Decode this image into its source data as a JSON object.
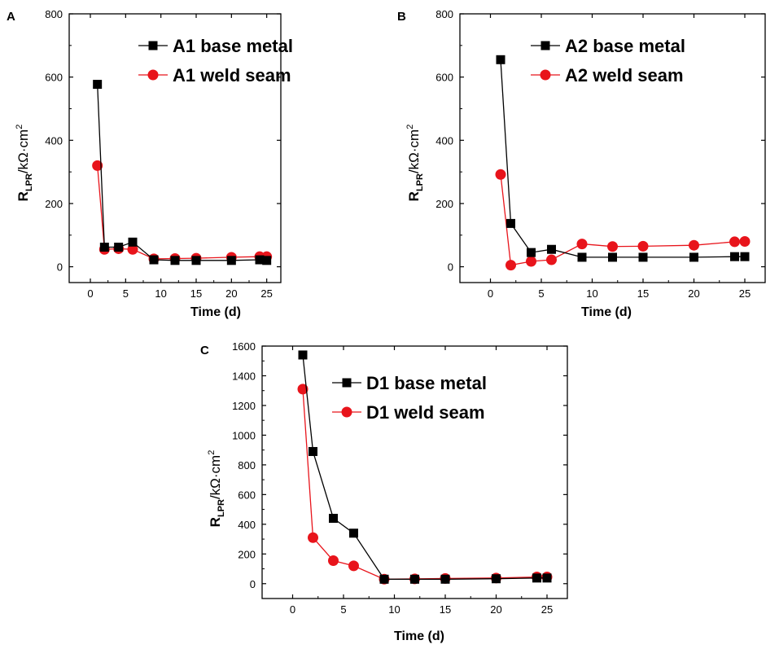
{
  "figure": {
    "xlabel": "Time (d)",
    "ylabel_main": "R",
    "ylabel_sub": "LPR",
    "ylabel_unit": "/kΩ·cm",
    "ylabel_sup": "2"
  },
  "colors": {
    "base": "#000000",
    "weld": "#e8141b"
  },
  "chart_data": [
    {
      "panel": "A",
      "type": "line",
      "x": [
        1,
        2,
        4,
        6,
        9,
        12,
        15,
        20,
        24,
        25
      ],
      "series": [
        {
          "name": "A1 base metal",
          "marker": "square",
          "values": [
            577,
            62,
            62,
            78,
            22,
            20,
            20,
            20,
            22,
            20
          ]
        },
        {
          "name": "A1 weld seam",
          "marker": "circle",
          "values": [
            320,
            55,
            57,
            55,
            25,
            26,
            27,
            30,
            32,
            32
          ]
        }
      ],
      "xlim": [
        -3,
        27
      ],
      "ylim": [
        -50,
        800
      ],
      "xticks": [
        0,
        5,
        10,
        15,
        20,
        25
      ],
      "yticks": [
        0,
        200,
        400,
        600,
        800
      ],
      "xlabel": "Time (d)",
      "ylabel": "RLPR/kΩ·cm2"
    },
    {
      "panel": "B",
      "type": "line",
      "x": [
        1,
        2,
        4,
        6,
        9,
        12,
        15,
        20,
        24,
        25
      ],
      "series": [
        {
          "name": "A2 base metal",
          "marker": "square",
          "values": [
            655,
            137,
            45,
            55,
            30,
            30,
            30,
            30,
            32,
            32
          ]
        },
        {
          "name": "A2 weld seam",
          "marker": "circle",
          "values": [
            292,
            5,
            17,
            22,
            72,
            64,
            65,
            68,
            79,
            80
          ]
        }
      ],
      "xlim": [
        -3,
        27
      ],
      "ylim": [
        -50,
        800
      ],
      "xticks": [
        0,
        5,
        10,
        15,
        20,
        25
      ],
      "yticks": [
        0,
        200,
        400,
        600,
        800
      ],
      "xlabel": "Time (d)",
      "ylabel": "RLPR/kΩ·cm2"
    },
    {
      "panel": "C",
      "type": "line",
      "x": [
        1,
        2,
        4,
        6,
        9,
        12,
        15,
        20,
        24,
        25
      ],
      "series": [
        {
          "name": "D1 base metal",
          "marker": "square",
          "values": [
            1540,
            890,
            440,
            340,
            30,
            30,
            30,
            33,
            38,
            38
          ]
        },
        {
          "name": "D1 weld seam",
          "marker": "circle",
          "values": [
            1310,
            310,
            155,
            120,
            30,
            32,
            35,
            38,
            45,
            45
          ]
        }
      ],
      "xlim": [
        -3,
        27
      ],
      "ylim": [
        -100,
        1600
      ],
      "xticks": [
        0,
        5,
        10,
        15,
        20,
        25
      ],
      "yticks": [
        0,
        200,
        400,
        600,
        800,
        1000,
        1200,
        1400,
        1600
      ],
      "xlabel": "Time (d)",
      "ylabel": "RLPR/kΩ·cm2"
    }
  ]
}
